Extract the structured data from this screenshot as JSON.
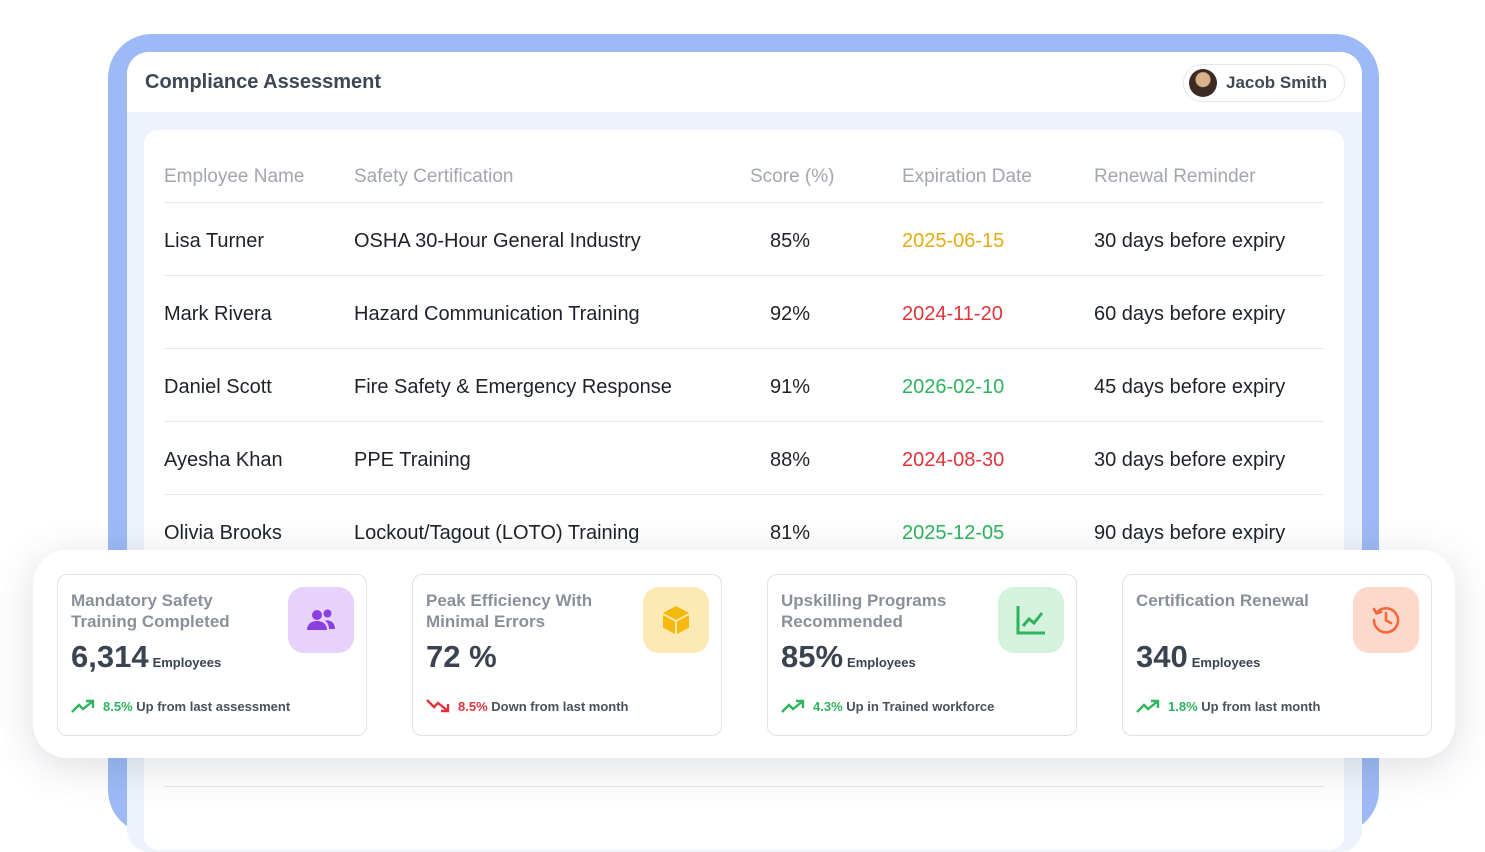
{
  "app": {
    "title": "Compliance Assessment"
  },
  "user": {
    "name": "Jacob Smith"
  },
  "table": {
    "headers": [
      "Employee Name",
      "Safety Certification",
      "Score (%)",
      "Expiration Date",
      "Renewal Reminder"
    ],
    "rows": [
      {
        "name": "Lisa Turner",
        "cert": "OSHA 30-Hour General Industry",
        "score": "85%",
        "date": "2025-06-15",
        "date_color": "#e2ac12",
        "reminder": "30 days before expiry"
      },
      {
        "name": "Mark Rivera",
        "cert": "Hazard Communication Training",
        "score": "92%",
        "date": "2024-11-20",
        "date_color": "#e0343c",
        "reminder": "60 days before expiry"
      },
      {
        "name": "Daniel Scott",
        "cert": "Fire Safety & Emergency Response",
        "score": "91%",
        "date": "2026-02-10",
        "date_color": "#2fb35c",
        "reminder": "45 days before expiry"
      },
      {
        "name": "Ayesha Khan",
        "cert": "PPE Training",
        "score": "88%",
        "date": "2024-08-30",
        "date_color": "#e0343c",
        "reminder": "30 days before expiry"
      },
      {
        "name": "Olivia Brooks",
        "cert": "Lockout/Tagout (LOTO) Training",
        "score": "81%",
        "date": "2025-12-05",
        "date_color": "#2fb35c",
        "reminder": "90 days before expiry"
      }
    ]
  },
  "stats": [
    {
      "label": "Mandatory Safety Training Completed",
      "value": "6,314",
      "unit": "Employees",
      "icon": "users-icon",
      "icon_bg": "#e6d2fb",
      "icon_color": "#8b3fe0",
      "trend": "up",
      "trend_pct": "8.5%",
      "trend_text": "Up from last assessment"
    },
    {
      "label": "Peak Efficiency With Minimal Errors",
      "value": "72 %",
      "unit": "",
      "icon": "cube-icon",
      "icon_bg": "#fde9b4",
      "icon_color": "#f5b90f",
      "trend": "down",
      "trend_pct": "8.5%",
      "trend_text": "Down from last month"
    },
    {
      "label": "Upskilling Programs Recommended",
      "value": "85%",
      "unit": "Employees",
      "icon": "chart-up-icon",
      "icon_bg": "#d4f2dd",
      "icon_color": "#2fb35c",
      "trend": "up",
      "trend_pct": "4.3%",
      "trend_text": "Up in Trained workforce"
    },
    {
      "label": "Certification Renewal",
      "value": "340",
      "unit": "Employees",
      "icon": "history-icon",
      "icon_bg": "#fdd9cc",
      "icon_color": "#f26a3b",
      "trend": "up",
      "trend_pct": "1.8%",
      "trend_text": "Up from last month"
    }
  ]
}
